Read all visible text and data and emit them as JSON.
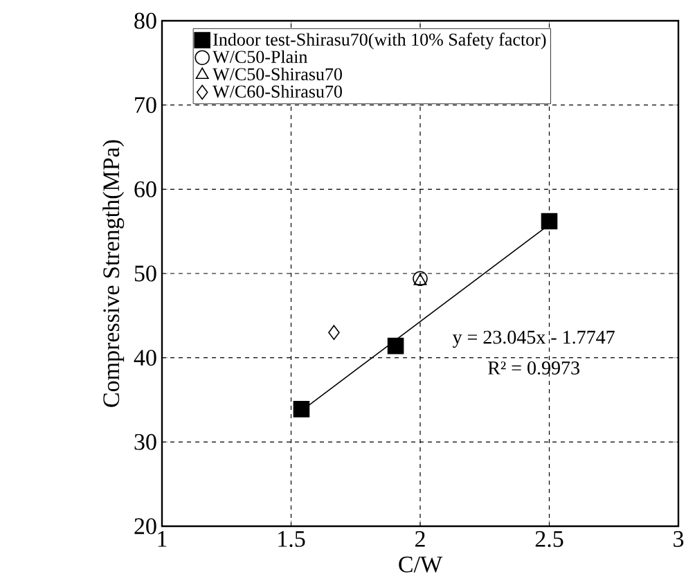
{
  "chart_data": {
    "type": "scatter",
    "xlabel": "C/W",
    "ylabel": "Compressive Strength(MPa)",
    "xlim": [
      1,
      3
    ],
    "ylim": [
      20,
      80
    ],
    "xticks": [
      1,
      1.5,
      2,
      2.5,
      3
    ],
    "yticks": [
      20,
      30,
      40,
      50,
      60,
      70,
      80
    ],
    "grid": true,
    "legend": "top left",
    "series": [
      {
        "name": "Indoor test-Shirasu70(with 10% Safety factor)",
        "color": "#000000",
        "marker": "square",
        "x": [
          1.54,
          1.905,
          2.5
        ],
        "values": [
          33.9,
          41.4,
          56.2
        ]
      },
      {
        "name": "W/C50-Plain",
        "color": "#000000",
        "marker": "circle",
        "x": [
          2.0
        ],
        "values": [
          49.4
        ]
      },
      {
        "name": "W/C50-Shirasu70",
        "color": "#000000",
        "marker": "triangle",
        "x": [
          2.0
        ],
        "values": [
          49.1
        ]
      },
      {
        "name": "W/C60-Shirasu70",
        "color": "#000000",
        "marker": "diamond",
        "x": [
          1.666
        ],
        "values": [
          43.0
        ]
      },
      {
        "type": "line",
        "color": "#000000",
        "marker": "none",
        "x": [
          1.54,
          2.5
        ],
        "values": [
          33.7,
          55.8
        ]
      }
    ],
    "annotations": [
      "y = 23.045x - 1.7747",
      "R² = 0.9973"
    ]
  }
}
